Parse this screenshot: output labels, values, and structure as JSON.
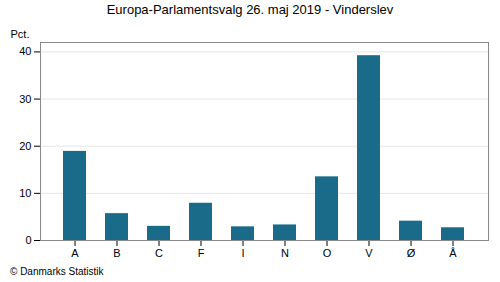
{
  "chart_data": {
    "type": "bar",
    "title": "Europa-Parlamentsvalg 26. maj 2019 - Vinderslev",
    "categories": [
      "A",
      "B",
      "C",
      "F",
      "I",
      "N",
      "O",
      "V",
      "Ø",
      "Å"
    ],
    "values": [
      18.9,
      5.7,
      3.0,
      7.9,
      2.9,
      3.3,
      13.5,
      39.2,
      4.1,
      2.7
    ],
    "color": "#1a6b8a",
    "ylabel": "Pct.",
    "ylim": [
      0,
      42
    ],
    "yticks": [
      0,
      10,
      20,
      30,
      40
    ],
    "grid": true,
    "annotations": [
      "© Danmarks Statistik"
    ]
  }
}
